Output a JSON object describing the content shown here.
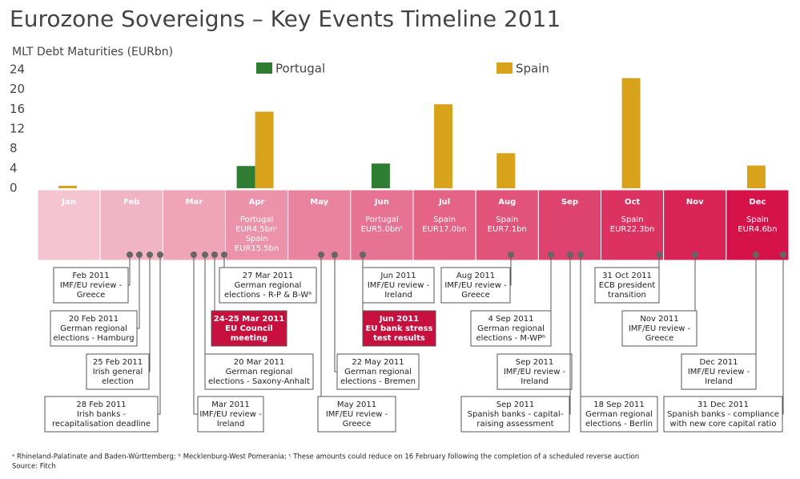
{
  "chart_data": {
    "type": "bar",
    "title": "Eurozone Sovereigns – Key Events Timeline 2011",
    "y_label": "MLT Debt Maturities (EURbn)",
    "categories": [
      "Jan",
      "Feb",
      "Mar",
      "Apr",
      "May",
      "Jun",
      "Jul",
      "Aug",
      "Sep",
      "Oct",
      "Nov",
      "Dec"
    ],
    "series": [
      {
        "name": "Portugal",
        "color": "#2f7d32",
        "values": [
          null,
          null,
          null,
          4.5,
          null,
          5.0,
          null,
          null,
          null,
          null,
          null,
          null
        ]
      },
      {
        "name": "Spain",
        "color": "#d9a21b",
        "values": [
          0.5,
          null,
          null,
          15.5,
          null,
          null,
          17.0,
          7.1,
          null,
          22.3,
          null,
          4.6
        ]
      }
    ],
    "ylim": [
      0,
      24
    ],
    "yticks": [
      0,
      4,
      8,
      12,
      16,
      20,
      24
    ],
    "legend": "top",
    "band_notes": [
      [],
      [],
      [],
      [
        "Portugal",
        "EUR4.5bnᶜ",
        "Spain",
        "EUR15.5bn"
      ],
      [],
      [
        "Portugal",
        "EUR5.0bnᶜ"
      ],
      [
        "Spain",
        "EUR17.0bn"
      ],
      [
        "Spain",
        "EUR7.1bn"
      ],
      [],
      [
        "Spain",
        "EUR22.3bn"
      ],
      [],
      [
        "Spain",
        "EUR4.6bn"
      ]
    ]
  },
  "events": [
    {
      "lines": [
        "Feb 2011",
        "IMF/EU review -",
        "Greece"
      ],
      "highlight": false
    },
    {
      "lines": [
        "20 Feb 2011",
        "German regional",
        "elections - Hamburg"
      ],
      "highlight": false
    },
    {
      "lines": [
        "25 Feb 2011",
        "Irish general",
        "election"
      ],
      "highlight": false
    },
    {
      "lines": [
        "28 Feb 2011",
        "Irish banks -",
        "recapitalisation deadline"
      ],
      "highlight": false
    },
    {
      "lines": [
        "27 Mar 2011",
        "German regional",
        "elections - R-P & B-Wᵃ"
      ],
      "highlight": false
    },
    {
      "lines": [
        "24-25 Mar 2011",
        "EU Council",
        "meeting"
      ],
      "highlight": true
    },
    {
      "lines": [
        "20 Mar 2011",
        "German regional",
        "elections - Saxony-Anhalt"
      ],
      "highlight": false
    },
    {
      "lines": [
        "Mar 2011",
        "IMF/EU review -",
        "Ireland"
      ],
      "highlight": false
    },
    {
      "lines": [
        "Jun 2011",
        "IMF/EU review -",
        "Ireland"
      ],
      "highlight": false
    },
    {
      "lines": [
        "Jun 2011",
        "EU bank stress",
        "test results"
      ],
      "highlight": true
    },
    {
      "lines": [
        "22 May 2011",
        "German regional",
        "elections - Bremen"
      ],
      "highlight": false
    },
    {
      "lines": [
        "May 2011",
        "IMF/EU review -",
        "Greece"
      ],
      "highlight": false
    },
    {
      "lines": [
        "Aug 2011",
        "IMF/EU review -",
        "Greece"
      ],
      "highlight": false
    },
    {
      "lines": [
        "4 Sep 2011",
        "German regional",
        "elections - M-WPᵇ"
      ],
      "highlight": false
    },
    {
      "lines": [
        "Sep 2011",
        "IMF/EU review -",
        "Ireland"
      ],
      "highlight": false
    },
    {
      "lines": [
        "Sep 2011",
        "Spanish banks - capital-",
        "raising assessment"
      ],
      "highlight": false
    },
    {
      "lines": [
        "18 Sep 2011",
        "German regional",
        "elections - Berlin"
      ],
      "highlight": false
    },
    {
      "lines": [
        "31 Oct 2011",
        "ECB president",
        "transition"
      ],
      "highlight": false
    },
    {
      "lines": [
        "Nov 2011",
        "IMF/EU review -",
        "Greece"
      ],
      "highlight": false
    },
    {
      "lines": [
        "Dec 2011",
        "IMF/EU review -",
        "Ireland"
      ],
      "highlight": false
    },
    {
      "lines": [
        "31 Dec 2011",
        "Spanish banks - compliance",
        "with new core capital ratio"
      ],
      "highlight": false
    }
  ],
  "footnote": "ᵃ Rhineland-Palatinate and Baden-Württemberg; ᵇ Mecklenburg-West Pomerania; ᶜ These amounts could reduce on 16 February following the completion of a scheduled reverse auction",
  "source": "Source: Fitch"
}
